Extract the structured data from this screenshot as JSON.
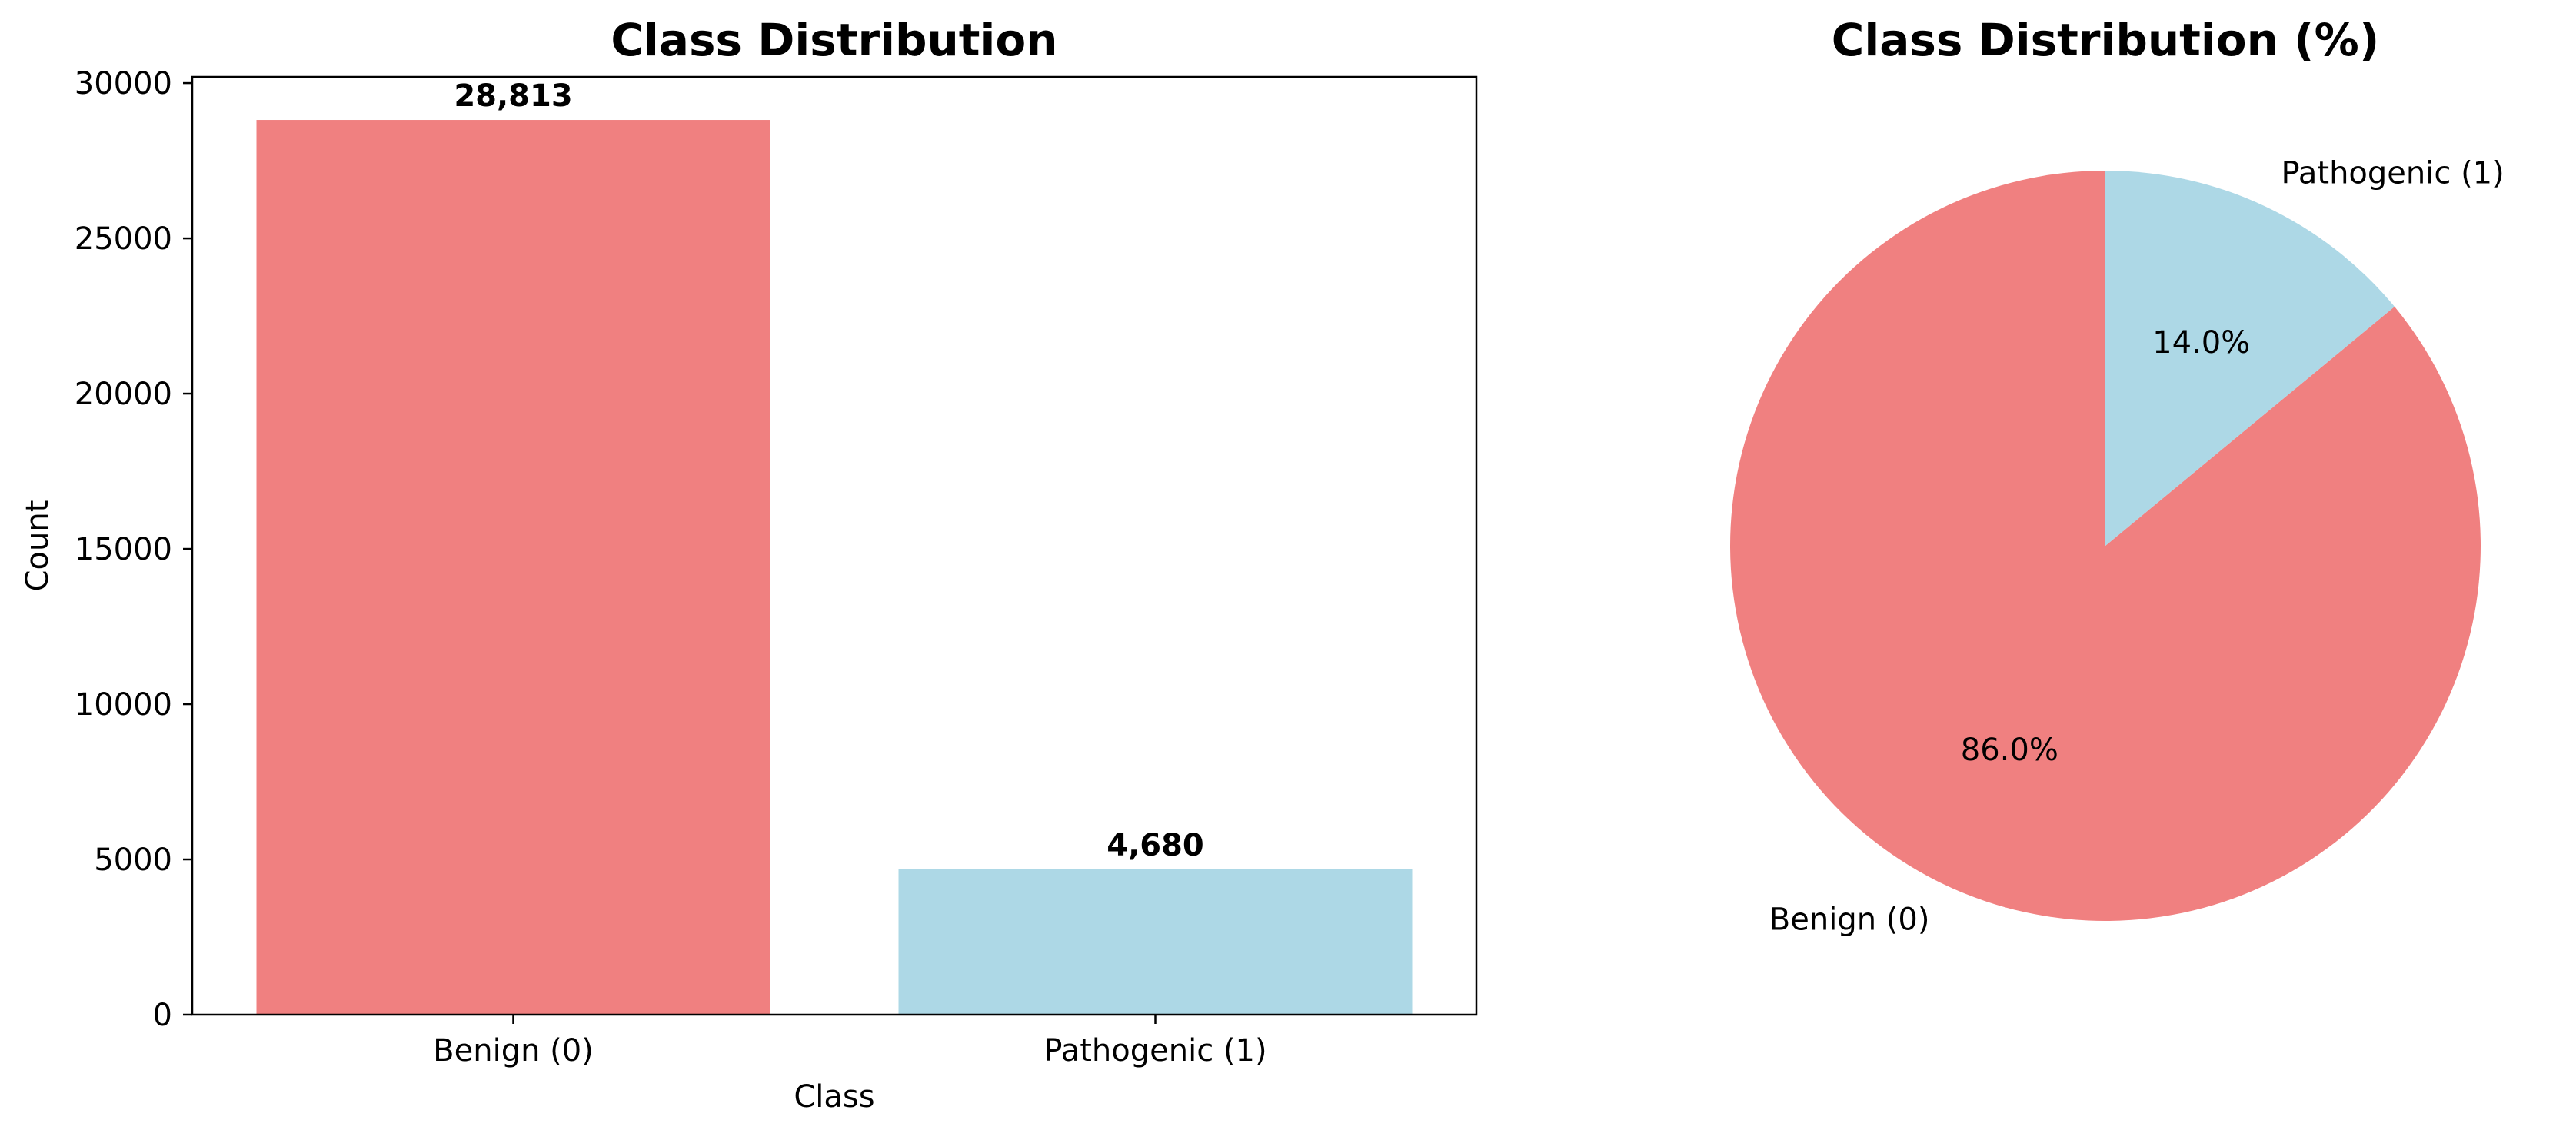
{
  "chart_data": [
    {
      "type": "bar",
      "title": "Class Distribution",
      "xlabel": "Class",
      "ylabel": "Count",
      "categories": [
        "Benign (0)",
        "Pathogenic (1)"
      ],
      "values": [
        28813,
        4680
      ],
      "value_labels": [
        "28,813",
        "4,680"
      ],
      "colors": [
        "#f08080",
        "#add8e6"
      ],
      "ylim": [
        0,
        30200
      ],
      "yticks": [
        0,
        5000,
        10000,
        15000,
        20000,
        25000,
        30000
      ],
      "ytick_labels": [
        "0",
        "5000",
        "10000",
        "15000",
        "20000",
        "25000",
        "30000"
      ],
      "grid": false
    },
    {
      "type": "pie",
      "title": "Class Distribution (%)",
      "labels": [
        "Benign (0)",
        "Pathogenic (1)"
      ],
      "values": [
        86.0,
        14.0
      ],
      "percent_labels": [
        "86.0%",
        "14.0%"
      ],
      "colors": [
        "#f08080",
        "#add8e6"
      ],
      "start_angle_deg": 90,
      "direction": "counterclockwise"
    }
  ]
}
